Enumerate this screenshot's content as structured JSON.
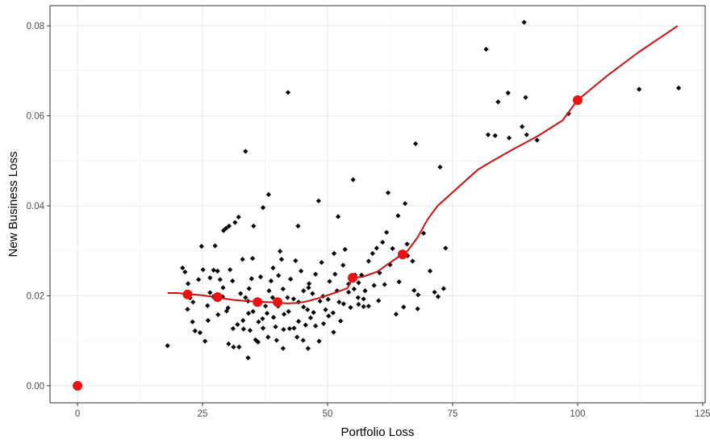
{
  "chart_data": {
    "type": "scatter",
    "xlabel": "Portfolio Loss",
    "ylabel": "New Business Loss",
    "xlim": [
      -5.5,
      125.5
    ],
    "ylim": [
      -0.0038,
      0.0845
    ],
    "x_ticks": [
      0,
      25,
      50,
      75,
      100,
      125
    ],
    "x_minor_ticks": [
      12.5,
      37.5,
      62.5,
      87.5,
      112.5
    ],
    "y_ticks": [
      0.0,
      0.02,
      0.04,
      0.06,
      0.08
    ],
    "y_minor_ticks": [
      0.01,
      0.03,
      0.05,
      0.07
    ],
    "x_tick_labels": [
      "0",
      "25",
      "50",
      "75",
      "100",
      "125"
    ],
    "y_tick_labels": [
      "0.00",
      "0.02",
      "0.04",
      "0.06",
      "0.08"
    ],
    "grid": true,
    "colors": {
      "points": "#000000",
      "fit_line": "#cc1111",
      "highlight": "#ee1111",
      "grid": "#ebebeb",
      "border": "#333333"
    },
    "series": [
      {
        "kind": "points",
        "points": [
          [
            18,
            0.0089
          ],
          [
            21,
            0.0262
          ],
          [
            21.5,
            0.0253
          ],
          [
            22,
            0.0208
          ],
          [
            22.5,
            0.0195
          ],
          [
            22,
            0.017
          ],
          [
            23,
            0.0142
          ],
          [
            23.5,
            0.0122
          ],
          [
            24.2,
            0.0236
          ],
          [
            24.5,
            0.0118
          ],
          [
            24.8,
            0.031
          ],
          [
            25.5,
            0.0099
          ],
          [
            26,
            0.0178
          ],
          [
            26.5,
            0.0207
          ],
          [
            26.5,
            0.024
          ],
          [
            27.2,
            0.0257
          ],
          [
            27.5,
            0.0311
          ],
          [
            28,
            0.0255
          ],
          [
            28.5,
            0.0236
          ],
          [
            29,
            0.0198
          ],
          [
            29.2,
            0.0345
          ],
          [
            29.7,
            0.035
          ],
          [
            29.8,
            0.0166
          ],
          [
            30.1,
            0.0173
          ],
          [
            30.5,
            0.0258
          ],
          [
            31,
            0.0233
          ],
          [
            31.2,
            0.0086
          ],
          [
            31.5,
            0.0363
          ],
          [
            32,
            0.0136
          ],
          [
            32.3,
            0.0086
          ],
          [
            32.6,
            0.0205
          ],
          [
            33,
            0.0281
          ],
          [
            33.2,
            0.0126
          ],
          [
            33.6,
            0.0196
          ],
          [
            34.2,
            0.0161
          ],
          [
            34.5,
            0.0123
          ],
          [
            34.3,
            0.0216
          ],
          [
            34.8,
            0.0238
          ],
          [
            35,
            0.0283
          ],
          [
            35.6,
            0.0102
          ],
          [
            35.2,
            0.0355
          ],
          [
            36,
            0.0187
          ],
          [
            36.6,
            0.0242
          ],
          [
            37,
            0.0149
          ],
          [
            37.1,
            0.0128
          ],
          [
            37.6,
            0.0177
          ],
          [
            37.9,
            0.0161
          ],
          [
            38.3,
            0.0211
          ],
          [
            38.7,
            0.0233
          ],
          [
            39,
            0.0196
          ],
          [
            39.1,
            0.0262
          ],
          [
            39.6,
            0.0131
          ],
          [
            39.8,
            0.0101
          ],
          [
            40.5,
            0.0299
          ],
          [
            40.8,
            0.0281
          ],
          [
            41.1,
            0.0215
          ],
          [
            41.3,
            0.0159
          ],
          [
            42,
            0.0196
          ],
          [
            42.4,
            0.0127
          ],
          [
            42.6,
            0.0237
          ],
          [
            43.3,
            0.0128
          ],
          [
            43.6,
            0.0278
          ],
          [
            43.9,
            0.0108
          ],
          [
            44.2,
            0.0186
          ],
          [
            44.7,
            0.0255
          ],
          [
            45.2,
            0.0211
          ],
          [
            45.6,
            0.0135
          ],
          [
            46,
            0.0169
          ],
          [
            46.6,
            0.0151
          ],
          [
            46.3,
            0.0227
          ],
          [
            47,
            0.0205
          ],
          [
            47.6,
            0.0248
          ],
          [
            47.6,
            0.0133
          ],
          [
            48.3,
            0.0099
          ],
          [
            48.5,
            0.0188
          ],
          [
            48.8,
            0.0274
          ],
          [
            49.1,
            0.0199
          ],
          [
            49.6,
            0.0169
          ],
          [
            50.1,
            0.0192
          ],
          [
            50.4,
            0.0232
          ],
          [
            51.1,
            0.0162
          ],
          [
            51.3,
            0.0294
          ],
          [
            51.5,
            0.0248
          ],
          [
            51.9,
            0.0211
          ],
          [
            52.3,
            0.0186
          ],
          [
            52.6,
            0.0144
          ],
          [
            53.1,
            0.0268
          ],
          [
            53.5,
            0.0303
          ],
          [
            54.2,
            0.0208
          ],
          [
            54.6,
            0.0174
          ],
          [
            55.3,
            0.0215
          ],
          [
            55.5,
            0.0246
          ],
          [
            56.1,
            0.0196
          ],
          [
            56.2,
            0.0181
          ],
          [
            56.8,
            0.0246
          ],
          [
            57.2,
            0.0176
          ],
          [
            57.5,
            0.0211
          ],
          [
            58.2,
            0.0277
          ],
          [
            59,
            0.0294
          ],
          [
            59.3,
            0.0223
          ],
          [
            59.8,
            0.0306
          ],
          [
            60.4,
            0.0251
          ],
          [
            61,
            0.0319
          ],
          [
            61.4,
            0.0225
          ],
          [
            61.8,
            0.0341
          ],
          [
            62.5,
            0.0269
          ],
          [
            63,
            0.0305
          ],
          [
            63.7,
            0.0159
          ],
          [
            64.3,
            0.0231
          ],
          [
            65.2,
            0.0175
          ],
          [
            65.5,
            0.0405
          ],
          [
            66,
            0.0289
          ],
          [
            67,
            0.0277
          ],
          [
            67.3,
            0.0212
          ],
          [
            68,
            0.0171
          ],
          [
            68.1,
            0.0202
          ],
          [
            69.2,
            0.0339
          ],
          [
            70.5,
            0.0255
          ],
          [
            71.4,
            0.0208
          ],
          [
            72.1,
            0.0198
          ],
          [
            72.5,
            0.0486
          ],
          [
            73.2,
            0.0216
          ],
          [
            73.6,
            0.0306
          ],
          [
            67.6,
            0.0538
          ],
          [
            33.6,
            0.0521
          ],
          [
            42.1,
            0.0652
          ],
          [
            55.1,
            0.0458
          ],
          [
            62.1,
            0.0429
          ],
          [
            64.1,
            0.0378
          ],
          [
            65.9,
            0.0315
          ],
          [
            52.1,
            0.0376
          ],
          [
            48.2,
            0.0411
          ],
          [
            38.2,
            0.0425
          ],
          [
            37.1,
            0.0396
          ],
          [
            32.2,
            0.0375
          ],
          [
            30.3,
            0.0355
          ],
          [
            25.1,
            0.0258
          ],
          [
            44.1,
            0.0355
          ],
          [
            35.1,
            0.0165
          ],
          [
            36.1,
            0.0097
          ],
          [
            40.1,
            0.0177
          ],
          [
            41.1,
            0.0083
          ],
          [
            45.1,
            0.0101
          ],
          [
            46.1,
            0.0083
          ],
          [
            28.1,
            0.0158
          ],
          [
            30.2,
            0.0093
          ],
          [
            26.1,
            0.0145
          ],
          [
            23.1,
            0.0186
          ],
          [
            22.1,
            0.0227
          ],
          [
            27.1,
            0.0198
          ],
          [
            29.1,
            0.0218
          ],
          [
            31.1,
            0.0127
          ],
          [
            33.1,
            0.0145
          ],
          [
            34.1,
            0.0062
          ],
          [
            34.1,
            0.0188
          ],
          [
            36.2,
            0.0142
          ],
          [
            38.1,
            0.0108
          ],
          [
            39.2,
            0.0152
          ],
          [
            40.2,
            0.0245
          ],
          [
            41.2,
            0.0125
          ],
          [
            42.2,
            0.0165
          ],
          [
            43.2,
            0.0193
          ],
          [
            44.2,
            0.0143
          ],
          [
            45.2,
            0.0175
          ],
          [
            46.2,
            0.0218
          ],
          [
            47.2,
            0.0163
          ],
          [
            49.2,
            0.0138
          ],
          [
            50.2,
            0.0155
          ],
          [
            51.2,
            0.0119
          ],
          [
            53.2,
            0.0182
          ],
          [
            54.2,
            0.0226
          ],
          [
            56.2,
            0.0229
          ],
          [
            57.2,
            0.0193
          ],
          [
            58.2,
            0.0177
          ],
          [
            60.2,
            0.0189
          ],
          [
            81.7,
            0.0748
          ],
          [
            82.1,
            0.0558
          ],
          [
            83.5,
            0.0556
          ],
          [
            84.1,
            0.0631
          ],
          [
            86.1,
            0.0651
          ],
          [
            86.3,
            0.0551
          ],
          [
            88.9,
            0.0576
          ],
          [
            89.3,
            0.0808
          ],
          [
            89.6,
            0.0641
          ],
          [
            89.8,
            0.0558
          ],
          [
            91.9,
            0.0546
          ],
          [
            98.2,
            0.0605
          ],
          [
            112.3,
            0.0659
          ],
          [
            120.2,
            0.0662
          ]
        ]
      },
      {
        "kind": "fit_line",
        "points": [
          [
            18,
            0.0206
          ],
          [
            20,
            0.0206
          ],
          [
            22,
            0.0204
          ],
          [
            25,
            0.0201
          ],
          [
            28,
            0.0196
          ],
          [
            31,
            0.0191
          ],
          [
            34,
            0.0188
          ],
          [
            36,
            0.0187
          ],
          [
            38,
            0.0186
          ],
          [
            40,
            0.0185
          ],
          [
            42,
            0.0183
          ],
          [
            44,
            0.0184
          ],
          [
            46,
            0.0188
          ],
          [
            48,
            0.0194
          ],
          [
            50,
            0.0201
          ],
          [
            52,
            0.0209
          ],
          [
            54,
            0.0217
          ],
          [
            55,
            0.024
          ],
          [
            57,
            0.0242
          ],
          [
            60,
            0.0254
          ],
          [
            62,
            0.027
          ],
          [
            64,
            0.0285
          ],
          [
            65,
            0.0292
          ],
          [
            66,
            0.03
          ],
          [
            68,
            0.033
          ],
          [
            70,
            0.037
          ],
          [
            72,
            0.04
          ],
          [
            75,
            0.043
          ],
          [
            80,
            0.048
          ],
          [
            83,
            0.05
          ],
          [
            87,
            0.0525
          ],
          [
            92,
            0.0555
          ],
          [
            97,
            0.059
          ],
          [
            100,
            0.0635
          ],
          [
            106,
            0.069
          ],
          [
            112,
            0.074
          ],
          [
            120,
            0.08
          ]
        ]
      },
      {
        "kind": "highlight_points",
        "points": [
          [
            0,
            0.0
          ],
          [
            22,
            0.0203
          ],
          [
            28,
            0.0197
          ],
          [
            36,
            0.0186
          ],
          [
            40,
            0.0186
          ],
          [
            55,
            0.024
          ],
          [
            65,
            0.0292
          ],
          [
            100,
            0.0635
          ]
        ]
      }
    ]
  }
}
